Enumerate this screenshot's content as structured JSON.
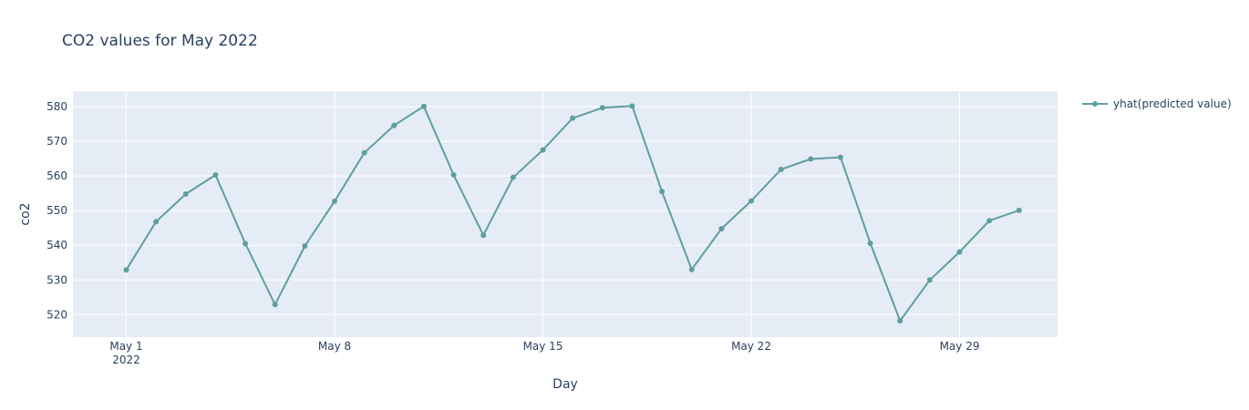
{
  "chart_data": {
    "type": "line",
    "title": "CO2 values for May 2022",
    "xlabel": "Day",
    "ylabel": "co2",
    "x": [
      "2022-05-01",
      "2022-05-02",
      "2022-05-03",
      "2022-05-04",
      "2022-05-05",
      "2022-05-06",
      "2022-05-07",
      "2022-05-08",
      "2022-05-09",
      "2022-05-10",
      "2022-05-11",
      "2022-05-12",
      "2022-05-13",
      "2022-05-14",
      "2022-05-15",
      "2022-05-16",
      "2022-05-17",
      "2022-05-18",
      "2022-05-19",
      "2022-05-20",
      "2022-05-21",
      "2022-05-22",
      "2022-05-23",
      "2022-05-24",
      "2022-05-25",
      "2022-05-26",
      "2022-05-27",
      "2022-05-28",
      "2022-05-29",
      "2022-05-30",
      "2022-05-31"
    ],
    "xlim": [
      "2022-04-29T05:00",
      "2022-06-01T07:00"
    ],
    "ylim": [
      513.5,
      584.5
    ],
    "x_ticks": [
      {
        "date": "2022-05-01",
        "label": "May 1",
        "sublabel": "2022"
      },
      {
        "date": "2022-05-08",
        "label": "May 8"
      },
      {
        "date": "2022-05-15",
        "label": "May 15"
      },
      {
        "date": "2022-05-22",
        "label": "May 22"
      },
      {
        "date": "2022-05-29",
        "label": "May 29"
      }
    ],
    "y_ticks": [
      520,
      530,
      540,
      550,
      560,
      570,
      580
    ],
    "series": [
      {
        "name": "yhat(predicted value)",
        "color": "#5f9ea0",
        "values": [
          532.9,
          546.8,
          554.8,
          560.3,
          540.5,
          522.9,
          539.8,
          552.7,
          566.7,
          574.6,
          580.1,
          560.3,
          542.9,
          559.6,
          567.5,
          576.7,
          579.7,
          580.2,
          555.5,
          533.0,
          544.8,
          552.8,
          561.9,
          564.9,
          565.4,
          540.6,
          518.2,
          530.0,
          538.1,
          547.1,
          550.1
        ]
      }
    ],
    "grid": true,
    "legend": "top-right"
  }
}
